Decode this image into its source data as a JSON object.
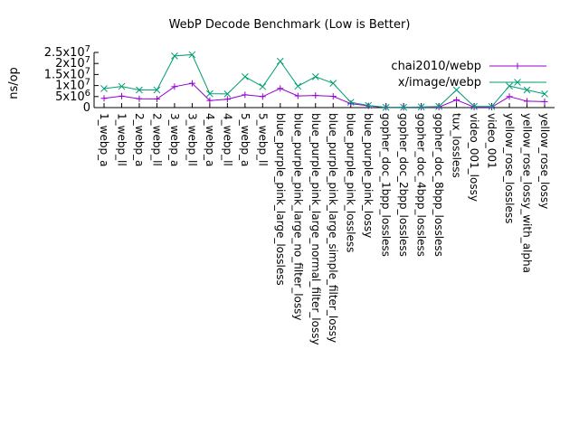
{
  "chart_data": {
    "type": "line",
    "title": "WebP Decode Benchmark (Low is Better)",
    "ylabel": "ns/op",
    "xlabel": "",
    "ylim": [
      0,
      25000000
    ],
    "y_ticks": [
      {
        "value": 0,
        "label": "0"
      },
      {
        "value": 5000000,
        "label": "5x10^6"
      },
      {
        "value": 10000000,
        "label": "1x10^7"
      },
      {
        "value": 15000000,
        "label": "1.5x10^7"
      },
      {
        "value": 20000000,
        "label": "2x10^7"
      },
      {
        "value": 25000000,
        "label": "2.5x10^7"
      }
    ],
    "categories": [
      "1_webp_a",
      "1_webp_ll",
      "2_webp_a",
      "2_webp_ll",
      "3_webp_a",
      "3_webp_ll",
      "4_webp_a",
      "4_webp_ll",
      "5_webp_a",
      "5_webp_ll",
      "blue_purple_pink_large_lossless",
      "blue_purple_pink_large_no_filter_lossy",
      "blue_purple_pink_large_normal_filter_lossy",
      "blue_purple_pink_large_simple_filter_lossy",
      "blue_purple_pink_lossless",
      "blue_purple_pink_lossy",
      "gopher_doc_1bpp_lossless",
      "gopher_doc_2bpp_lossless",
      "gopher_doc_4bpp_lossless",
      "gopher_doc_8bpp_lossless",
      "tux_lossless",
      "video_001_lossy",
      "video_001",
      "yellow_rose_lossless",
      "yellow_rose_lossy_with_alpha",
      "yellow_rose_lossy"
    ],
    "series": [
      {
        "name": "chai2010/webp",
        "color": "#9400d3",
        "marker": "plus",
        "values": [
          4200000,
          5200000,
          4000000,
          3900000,
          9500000,
          11000000,
          3200000,
          3800000,
          5800000,
          5000000,
          8700000,
          5300000,
          5500000,
          5100000,
          1800000,
          800000,
          100000,
          100000,
          150000,
          200000,
          3500000,
          200000,
          200000,
          5000000,
          2900000,
          2700000
        ]
      },
      {
        "name": "x/image/webp",
        "color": "#009e73",
        "marker": "cross",
        "values": [
          8600000,
          9600000,
          8000000,
          8000000,
          23400000,
          24000000,
          6300000,
          6200000,
          14000000,
          9500000,
          21000000,
          9700000,
          14000000,
          11000000,
          2400000,
          1000000,
          100000,
          150000,
          300000,
          500000,
          8000000,
          500000,
          500000,
          9800000,
          8000000,
          6200000
        ]
      }
    ],
    "legend_position": "top-right",
    "grid": false
  }
}
